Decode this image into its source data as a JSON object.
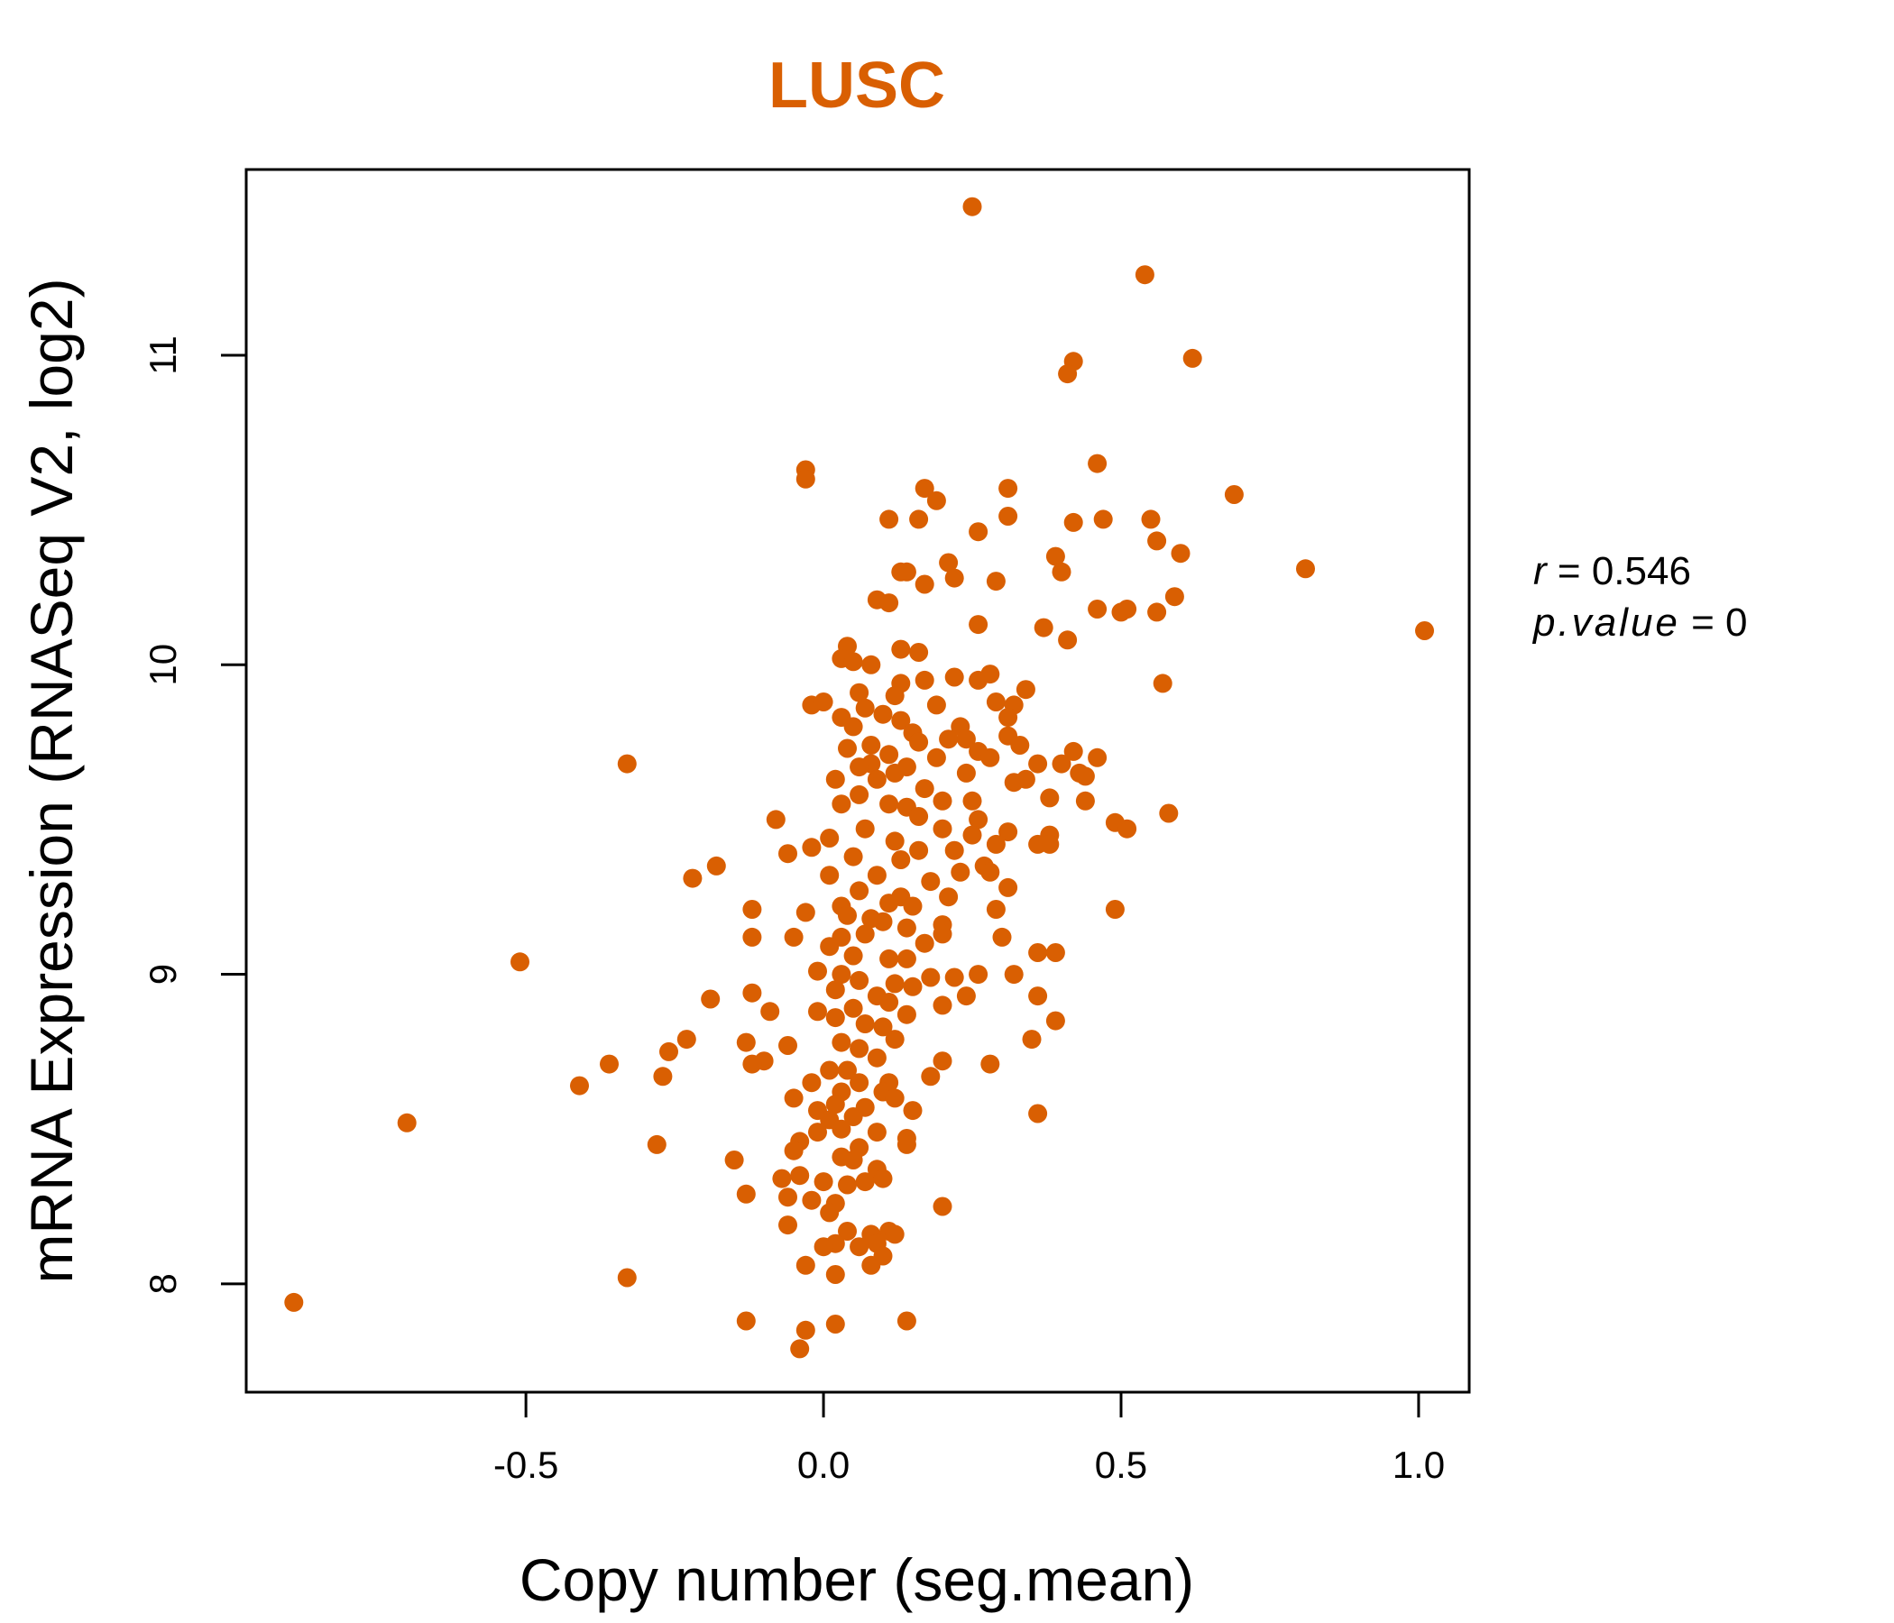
{
  "chart_data": {
    "type": "scatter",
    "title": "LUSC",
    "xlabel": "Copy number (seg.mean)",
    "ylabel": "mRNA Expression (RNASeq V2, log2)",
    "xlim": [
      -0.97,
      1.085
    ],
    "ylim": [
      7.65,
      11.6
    ],
    "x_ticks": [
      -0.5,
      0.0,
      0.5,
      1.0
    ],
    "x_tick_labels": [
      "-0.5",
      "0.0",
      "0.5",
      "1.0"
    ],
    "y_ticks": [
      8,
      9,
      10,
      11
    ],
    "y_tick_labels": [
      "8",
      "9",
      "10",
      "11"
    ],
    "stats": {
      "r_symbol": "r",
      "r_eq": " = ",
      "r_value": "0.546",
      "p_symbol": "p.value",
      "p_eq": " = ",
      "p_value": "0"
    },
    "point_color": "#D95F02",
    "title_color": "#D95F02",
    "series": [
      {
        "points": [
          [
            0.25,
            11.48
          ],
          [
            0.54,
            11.26
          ],
          [
            0.62,
            10.99
          ],
          [
            0.42,
            10.98
          ],
          [
            0.41,
            10.94
          ],
          [
            -0.03,
            10.63
          ],
          [
            -0.03,
            10.6
          ],
          [
            0.46,
            10.65
          ],
          [
            0.69,
            10.55
          ],
          [
            0.17,
            10.57
          ],
          [
            0.31,
            10.57
          ],
          [
            0.19,
            10.53
          ],
          [
            0.11,
            10.47
          ],
          [
            0.16,
            10.47
          ],
          [
            0.31,
            10.48
          ],
          [
            0.47,
            10.47
          ],
          [
            0.55,
            10.47
          ],
          [
            0.42,
            10.46
          ],
          [
            0.26,
            10.43
          ],
          [
            0.56,
            10.4
          ],
          [
            0.6,
            10.36
          ],
          [
            0.39,
            10.35
          ],
          [
            0.81,
            10.31
          ],
          [
            0.21,
            10.33
          ],
          [
            0.13,
            10.3
          ],
          [
            0.14,
            10.3
          ],
          [
            0.22,
            10.28
          ],
          [
            0.4,
            10.3
          ],
          [
            0.29,
            10.27
          ],
          [
            0.17,
            10.26
          ],
          [
            0.09,
            10.21
          ],
          [
            0.11,
            10.2
          ],
          [
            0.59,
            10.22
          ],
          [
            0.46,
            10.18
          ],
          [
            0.5,
            10.17
          ],
          [
            0.51,
            10.18
          ],
          [
            0.56,
            10.17
          ],
          [
            1.01,
            10.11
          ],
          [
            0.26,
            10.13
          ],
          [
            0.37,
            10.12
          ],
          [
            0.41,
            10.08
          ],
          [
            0.04,
            10.06
          ],
          [
            0.13,
            10.05
          ],
          [
            0.16,
            10.04
          ],
          [
            0.03,
            10.02
          ],
          [
            0.05,
            10.01
          ],
          [
            0.08,
            10.0
          ],
          [
            0.22,
            9.96
          ],
          [
            0.26,
            9.95
          ],
          [
            0.28,
            9.97
          ],
          [
            0.17,
            9.95
          ],
          [
            0.13,
            9.94
          ],
          [
            0.57,
            9.94
          ],
          [
            0.34,
            9.92
          ],
          [
            0.12,
            9.9
          ],
          [
            0.06,
            9.91
          ],
          [
            0.29,
            9.88
          ],
          [
            0.32,
            9.87
          ],
          [
            -0.02,
            9.87
          ],
          [
            0.0,
            9.88
          ],
          [
            0.19,
            9.87
          ],
          [
            0.07,
            9.86
          ],
          [
            0.1,
            9.84
          ],
          [
            0.31,
            9.83
          ],
          [
            0.05,
            9.8
          ],
          [
            0.13,
            9.82
          ],
          [
            0.23,
            9.8
          ],
          [
            0.03,
            9.83
          ],
          [
            0.15,
            9.78
          ],
          [
            0.21,
            9.76
          ],
          [
            0.31,
            9.77
          ],
          [
            0.24,
            9.76
          ],
          [
            0.08,
            9.74
          ],
          [
            0.16,
            9.75
          ],
          [
            0.33,
            9.74
          ],
          [
            0.04,
            9.73
          ],
          [
            0.26,
            9.72
          ],
          [
            0.42,
            9.72
          ],
          [
            0.11,
            9.71
          ],
          [
            0.28,
            9.7
          ],
          [
            0.46,
            9.7
          ],
          [
            0.36,
            9.68
          ],
          [
            0.19,
            9.7
          ],
          [
            0.08,
            9.68
          ],
          [
            0.14,
            9.67
          ],
          [
            0.06,
            9.67
          ],
          [
            0.4,
            9.68
          ],
          [
            0.24,
            9.65
          ],
          [
            0.12,
            9.65
          ],
          [
            0.43,
            9.65
          ],
          [
            0.44,
            9.64
          ],
          [
            0.02,
            9.63
          ],
          [
            0.09,
            9.63
          ],
          [
            0.34,
            9.63
          ],
          [
            0.32,
            9.62
          ],
          [
            0.17,
            9.6
          ],
          [
            0.06,
            9.58
          ],
          [
            0.38,
            9.57
          ],
          [
            0.44,
            9.56
          ],
          [
            0.2,
            9.56
          ],
          [
            0.25,
            9.56
          ],
          [
            0.03,
            9.55
          ],
          [
            0.11,
            9.55
          ],
          [
            0.14,
            9.54
          ],
          [
            0.58,
            9.52
          ],
          [
            0.16,
            9.51
          ],
          [
            0.26,
            9.5
          ],
          [
            -0.08,
            9.5
          ],
          [
            0.49,
            9.49
          ],
          [
            0.51,
            9.47
          ],
          [
            0.07,
            9.47
          ],
          [
            0.2,
            9.47
          ],
          [
            0.31,
            9.46
          ],
          [
            0.38,
            9.45
          ],
          [
            0.25,
            9.45
          ],
          [
            0.01,
            9.44
          ],
          [
            0.12,
            9.43
          ],
          [
            0.29,
            9.42
          ],
          [
            0.36,
            9.42
          ],
          [
            0.38,
            9.42
          ],
          [
            -0.02,
            9.41
          ],
          [
            0.16,
            9.4
          ],
          [
            0.22,
            9.4
          ],
          [
            0.05,
            9.38
          ],
          [
            0.13,
            9.37
          ],
          [
            -0.06,
            9.39
          ],
          [
            -0.18,
            9.35
          ],
          [
            0.27,
            9.35
          ],
          [
            0.23,
            9.33
          ],
          [
            0.28,
            9.33
          ],
          [
            0.01,
            9.32
          ],
          [
            0.09,
            9.32
          ],
          [
            -0.22,
            9.31
          ],
          [
            0.18,
            9.3
          ],
          [
            0.31,
            9.28
          ],
          [
            0.06,
            9.27
          ],
          [
            0.21,
            9.25
          ],
          [
            0.13,
            9.25
          ],
          [
            0.11,
            9.23
          ],
          [
            0.03,
            9.22
          ],
          [
            0.15,
            9.22
          ],
          [
            0.49,
            9.21
          ],
          [
            -0.12,
            9.21
          ],
          [
            0.29,
            9.21
          ],
          [
            0.04,
            9.19
          ],
          [
            -0.03,
            9.2
          ],
          [
            0.08,
            9.18
          ],
          [
            0.1,
            9.17
          ],
          [
            0.2,
            9.16
          ],
          [
            0.14,
            9.15
          ],
          [
            0.07,
            9.13
          ],
          [
            0.03,
            9.12
          ],
          [
            -0.05,
            9.12
          ],
          [
            -0.12,
            9.12
          ],
          [
            0.3,
            9.12
          ],
          [
            0.2,
            9.13
          ],
          [
            0.01,
            9.09
          ],
          [
            0.17,
            9.1
          ],
          [
            0.36,
            9.07
          ],
          [
            0.39,
            9.07
          ],
          [
            0.05,
            9.06
          ],
          [
            0.11,
            9.05
          ],
          [
            0.14,
            9.05
          ],
          [
            -0.51,
            9.04
          ],
          [
            -0.01,
            9.01
          ],
          [
            0.03,
            9.0
          ],
          [
            0.18,
            8.99
          ],
          [
            0.22,
            8.99
          ],
          [
            0.26,
            9.0
          ],
          [
            0.32,
            9.0
          ],
          [
            0.06,
            8.98
          ],
          [
            0.12,
            8.97
          ],
          [
            0.15,
            8.96
          ],
          [
            0.02,
            8.95
          ],
          [
            -0.12,
            8.94
          ],
          [
            0.09,
            8.93
          ],
          [
            0.36,
            8.93
          ],
          [
            0.24,
            8.93
          ],
          [
            -0.19,
            8.92
          ],
          [
            0.11,
            8.91
          ],
          [
            0.2,
            8.9
          ],
          [
            0.05,
            8.89
          ],
          [
            -0.01,
            8.88
          ],
          [
            -0.09,
            8.88
          ],
          [
            0.14,
            8.87
          ],
          [
            0.02,
            8.86
          ],
          [
            0.39,
            8.85
          ],
          [
            0.07,
            8.84
          ],
          [
            0.1,
            8.83
          ],
          [
            0.35,
            8.79
          ],
          [
            -0.23,
            8.79
          ],
          [
            -0.13,
            8.78
          ],
          [
            0.12,
            8.79
          ],
          [
            0.03,
            8.78
          ],
          [
            -0.06,
            8.77
          ],
          [
            0.06,
            8.76
          ],
          [
            -0.26,
            8.75
          ],
          [
            0.09,
            8.73
          ],
          [
            -0.1,
            8.72
          ],
          [
            0.2,
            8.72
          ],
          [
            0.28,
            8.71
          ],
          [
            -0.36,
            8.71
          ],
          [
            -0.12,
            8.71
          ],
          [
            0.04,
            8.69
          ],
          [
            0.01,
            8.69
          ],
          [
            -0.27,
            8.67
          ],
          [
            0.18,
            8.67
          ],
          [
            0.11,
            8.65
          ],
          [
            0.06,
            8.65
          ],
          [
            -0.02,
            8.65
          ],
          [
            -0.41,
            8.64
          ],
          [
            0.03,
            8.62
          ],
          [
            0.1,
            8.62
          ],
          [
            -0.05,
            8.6
          ],
          [
            0.12,
            8.6
          ],
          [
            0.02,
            8.58
          ],
          [
            0.07,
            8.57
          ],
          [
            0.15,
            8.56
          ],
          [
            -0.01,
            8.56
          ],
          [
            0.36,
            8.55
          ],
          [
            0.05,
            8.54
          ],
          [
            0.01,
            8.53
          ],
          [
            -0.7,
            8.52
          ],
          [
            0.03,
            8.5
          ],
          [
            0.09,
            8.49
          ],
          [
            -0.01,
            8.49
          ],
          [
            0.14,
            8.47
          ],
          [
            -0.04,
            8.46
          ],
          [
            -0.28,
            8.45
          ],
          [
            0.14,
            8.45
          ],
          [
            0.06,
            8.44
          ],
          [
            -0.05,
            8.43
          ],
          [
            0.03,
            8.41
          ],
          [
            -0.15,
            8.4
          ],
          [
            0.05,
            8.4
          ],
          [
            0.09,
            8.37
          ],
          [
            -0.04,
            8.35
          ],
          [
            0.1,
            8.34
          ],
          [
            -0.07,
            8.34
          ],
          [
            0.0,
            8.33
          ],
          [
            0.07,
            8.33
          ],
          [
            0.04,
            8.32
          ],
          [
            -0.13,
            8.29
          ],
          [
            -0.06,
            8.28
          ],
          [
            -0.02,
            8.27
          ],
          [
            0.02,
            8.26
          ],
          [
            0.2,
            8.25
          ],
          [
            0.01,
            8.23
          ],
          [
            -0.06,
            8.19
          ],
          [
            0.11,
            8.17
          ],
          [
            0.04,
            8.17
          ],
          [
            0.08,
            8.16
          ],
          [
            0.12,
            8.16
          ],
          [
            0.02,
            8.13
          ],
          [
            0.09,
            8.13
          ],
          [
            0.0,
            8.12
          ],
          [
            0.06,
            8.12
          ],
          [
            0.1,
            8.09
          ],
          [
            -0.03,
            8.06
          ],
          [
            0.08,
            8.06
          ],
          [
            0.02,
            8.03
          ],
          [
            -0.33,
            8.02
          ],
          [
            -0.89,
            7.94
          ],
          [
            -0.13,
            7.88
          ],
          [
            0.14,
            7.88
          ],
          [
            0.02,
            7.87
          ],
          [
            -0.03,
            7.85
          ],
          [
            -0.04,
            7.79
          ],
          [
            -0.33,
            9.68
          ]
        ]
      }
    ]
  }
}
